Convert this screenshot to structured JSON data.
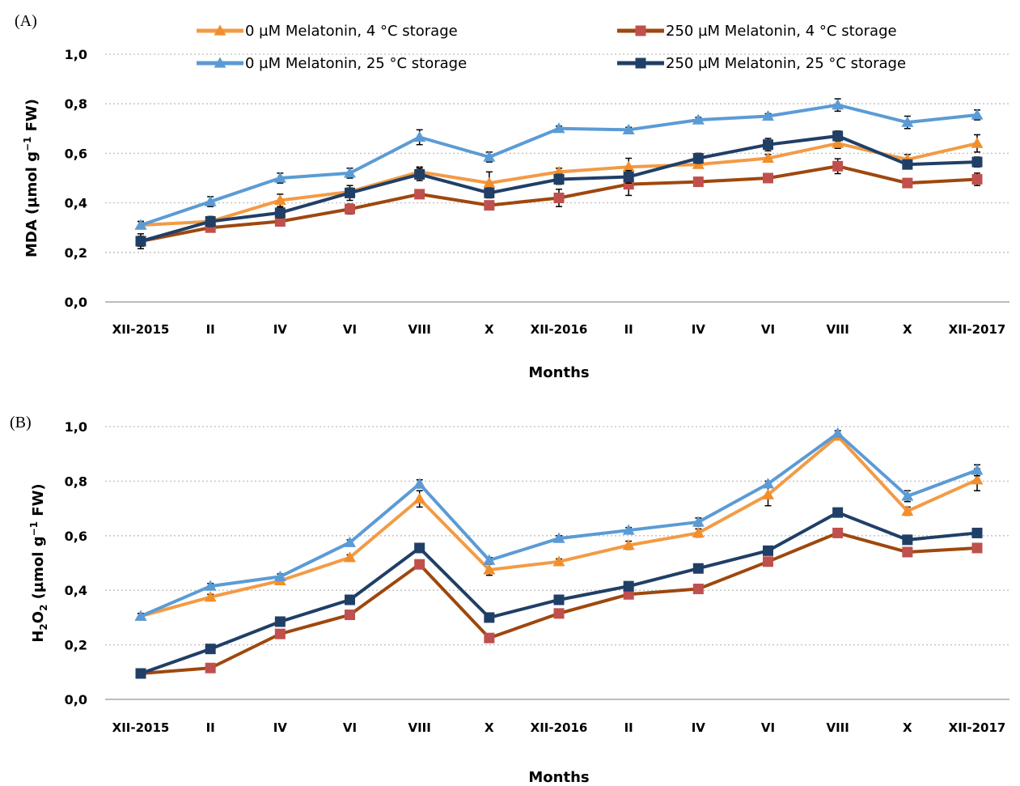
{
  "colors": {
    "orange": "#F29B45",
    "brown": "#9E480E",
    "light_blue": "#5B9BD5",
    "dark_blue": "#203F66",
    "square_fill": "#C0504D",
    "grid": "#BFBFBF",
    "axis": "#A6A6A6"
  },
  "chart_data": [
    {
      "type": "line",
      "panel_label": "(A)",
      "xlabel": "Months",
      "ylabel": "MDA (µmol g⁻¹ FW)",
      "ylabel_main": "MDA  (µmol g",
      "ylabel_sup": "−1",
      "ylabel_tail": " FW)",
      "ylim": [
        0,
        1
      ],
      "yticks": [
        "0,0",
        "0,2",
        "0,4",
        "0,6",
        "0,8",
        "1,0"
      ],
      "grid": "horizontal dotted",
      "legend_position": "top",
      "categories": [
        "XII-2015",
        "II",
        "IV",
        "VI",
        "VIII",
        "X",
        "XII-2016",
        "II",
        "IV",
        "VI",
        "VIII",
        "X",
        "XII-2017"
      ],
      "series": [
        {
          "name": "0 µM Melatonin, 4 °C storage",
          "color": "#F29B45",
          "marker": "triangle",
          "marker_fill": "#F28E2B",
          "values": [
            0.31,
            0.325,
            0.41,
            0.445,
            0.525,
            0.48,
            0.525,
            0.545,
            0.555,
            0.58,
            0.64,
            0.575,
            0.64
          ],
          "errors": [
            0.015,
            0.01,
            0.025,
            0.015,
            0.02,
            0.045,
            0.015,
            0.035,
            0.015,
            0.015,
            0.02,
            0.02,
            0.035
          ]
        },
        {
          "name": "250 µM Melatonin, 4 °C storage",
          "color": "#9E480E",
          "marker": "square",
          "marker_fill": "#C0504D",
          "values": [
            0.245,
            0.3,
            0.325,
            0.375,
            0.435,
            0.39,
            0.42,
            0.475,
            0.485,
            0.5,
            0.548,
            0.48,
            0.495
          ],
          "errors": [
            0.02,
            0.015,
            0.015,
            0.02,
            0.015,
            0.015,
            0.035,
            0.045,
            0.015,
            0.01,
            0.03,
            0.01,
            0.025
          ]
        },
        {
          "name": "0 µM Melatonin, 25 °C storage",
          "color": "#5B9BD5",
          "marker": "triangle",
          "marker_fill": "#5B9BD5",
          "values": [
            0.31,
            0.405,
            0.5,
            0.52,
            0.665,
            0.585,
            0.7,
            0.695,
            0.735,
            0.75,
            0.795,
            0.725,
            0.755
          ],
          "errors": [
            0.015,
            0.02,
            0.02,
            0.02,
            0.03,
            0.02,
            0.01,
            0.01,
            0.01,
            0.01,
            0.025,
            0.025,
            0.02
          ]
        },
        {
          "name": "250 µM Melatonin, 25 °C storage",
          "color": "#203F66",
          "marker": "square",
          "marker_fill": "#203F66",
          "values": [
            0.245,
            0.325,
            0.36,
            0.44,
            0.515,
            0.44,
            0.495,
            0.505,
            0.58,
            0.635,
            0.67,
            0.555,
            0.565
          ],
          "errors": [
            0.03,
            0.02,
            0.02,
            0.03,
            0.025,
            0.02,
            0.02,
            0.025,
            0.02,
            0.025,
            0.02,
            0.015,
            0.02
          ]
        }
      ]
    },
    {
      "type": "line",
      "panel_label": "(B)",
      "xlabel": "Months",
      "ylabel": "H₂O₂ (µmol g⁻¹ FW)",
      "ylabel_main": "H",
      "ylabel_sub": "2",
      "ylabel_mid": "O",
      "ylabel_sub2": "2",
      "ylabel_after": " (µmol g",
      "ylabel_sup": "−1",
      "ylabel_tail": " FW)",
      "ylim": [
        0,
        1
      ],
      "yticks": [
        "0,0",
        "0,2",
        "0,4",
        "0,6",
        "0,8",
        "1,0"
      ],
      "grid": "horizontal dotted",
      "categories": [
        "XII-2015",
        "II",
        "IV",
        "VI",
        "VIII",
        "X",
        "XII-2016",
        "II",
        "IV",
        "VI",
        "VIII",
        "X",
        "XII-2017"
      ],
      "series": [
        {
          "name": "0 µM Melatonin, 4 °C storage",
          "color": "#F29B45",
          "marker": "triangle",
          "marker_fill": "#F28E2B",
          "values": [
            0.305,
            0.375,
            0.435,
            0.52,
            0.735,
            0.475,
            0.505,
            0.565,
            0.61,
            0.75,
            0.965,
            0.69,
            0.805
          ],
          "errors": [
            0.01,
            0.01,
            0.01,
            0.01,
            0.03,
            0.02,
            0.01,
            0.015,
            0.015,
            0.04,
            0.01,
            0.015,
            0.04
          ]
        },
        {
          "name": "250 µM Melatonin, 4 °C storage",
          "color": "#9E480E",
          "marker": "square",
          "marker_fill": "#C0504D",
          "values": [
            0.095,
            0.115,
            0.24,
            0.31,
            0.495,
            0.225,
            0.315,
            0.385,
            0.405,
            0.505,
            0.61,
            0.54,
            0.555
          ],
          "errors": [
            0.005,
            0.005,
            0.005,
            0.005,
            0.01,
            0.005,
            0.005,
            0.005,
            0.005,
            0.01,
            0.005,
            0.005,
            0.005
          ]
        },
        {
          "name": "0 µM Melatonin, 25 °C storage",
          "color": "#5B9BD5",
          "marker": "triangle",
          "marker_fill": "#5B9BD5",
          "values": [
            0.305,
            0.415,
            0.45,
            0.575,
            0.79,
            0.51,
            0.59,
            0.62,
            0.65,
            0.79,
            0.975,
            0.745,
            0.84
          ],
          "errors": [
            0.01,
            0.01,
            0.01,
            0.01,
            0.015,
            0.01,
            0.01,
            0.01,
            0.015,
            0.01,
            0.01,
            0.02,
            0.02
          ]
        },
        {
          "name": "250 µM Melatonin, 25 °C storage",
          "color": "#203F66",
          "marker": "square",
          "marker_fill": "#203F66",
          "values": [
            0.095,
            0.185,
            0.285,
            0.365,
            0.555,
            0.3,
            0.365,
            0.415,
            0.48,
            0.545,
            0.685,
            0.585,
            0.61
          ],
          "errors": [
            0.005,
            0.005,
            0.005,
            0.005,
            0.01,
            0.005,
            0.005,
            0.005,
            0.005,
            0.005,
            0.005,
            0.005,
            0.005
          ]
        }
      ]
    }
  ]
}
